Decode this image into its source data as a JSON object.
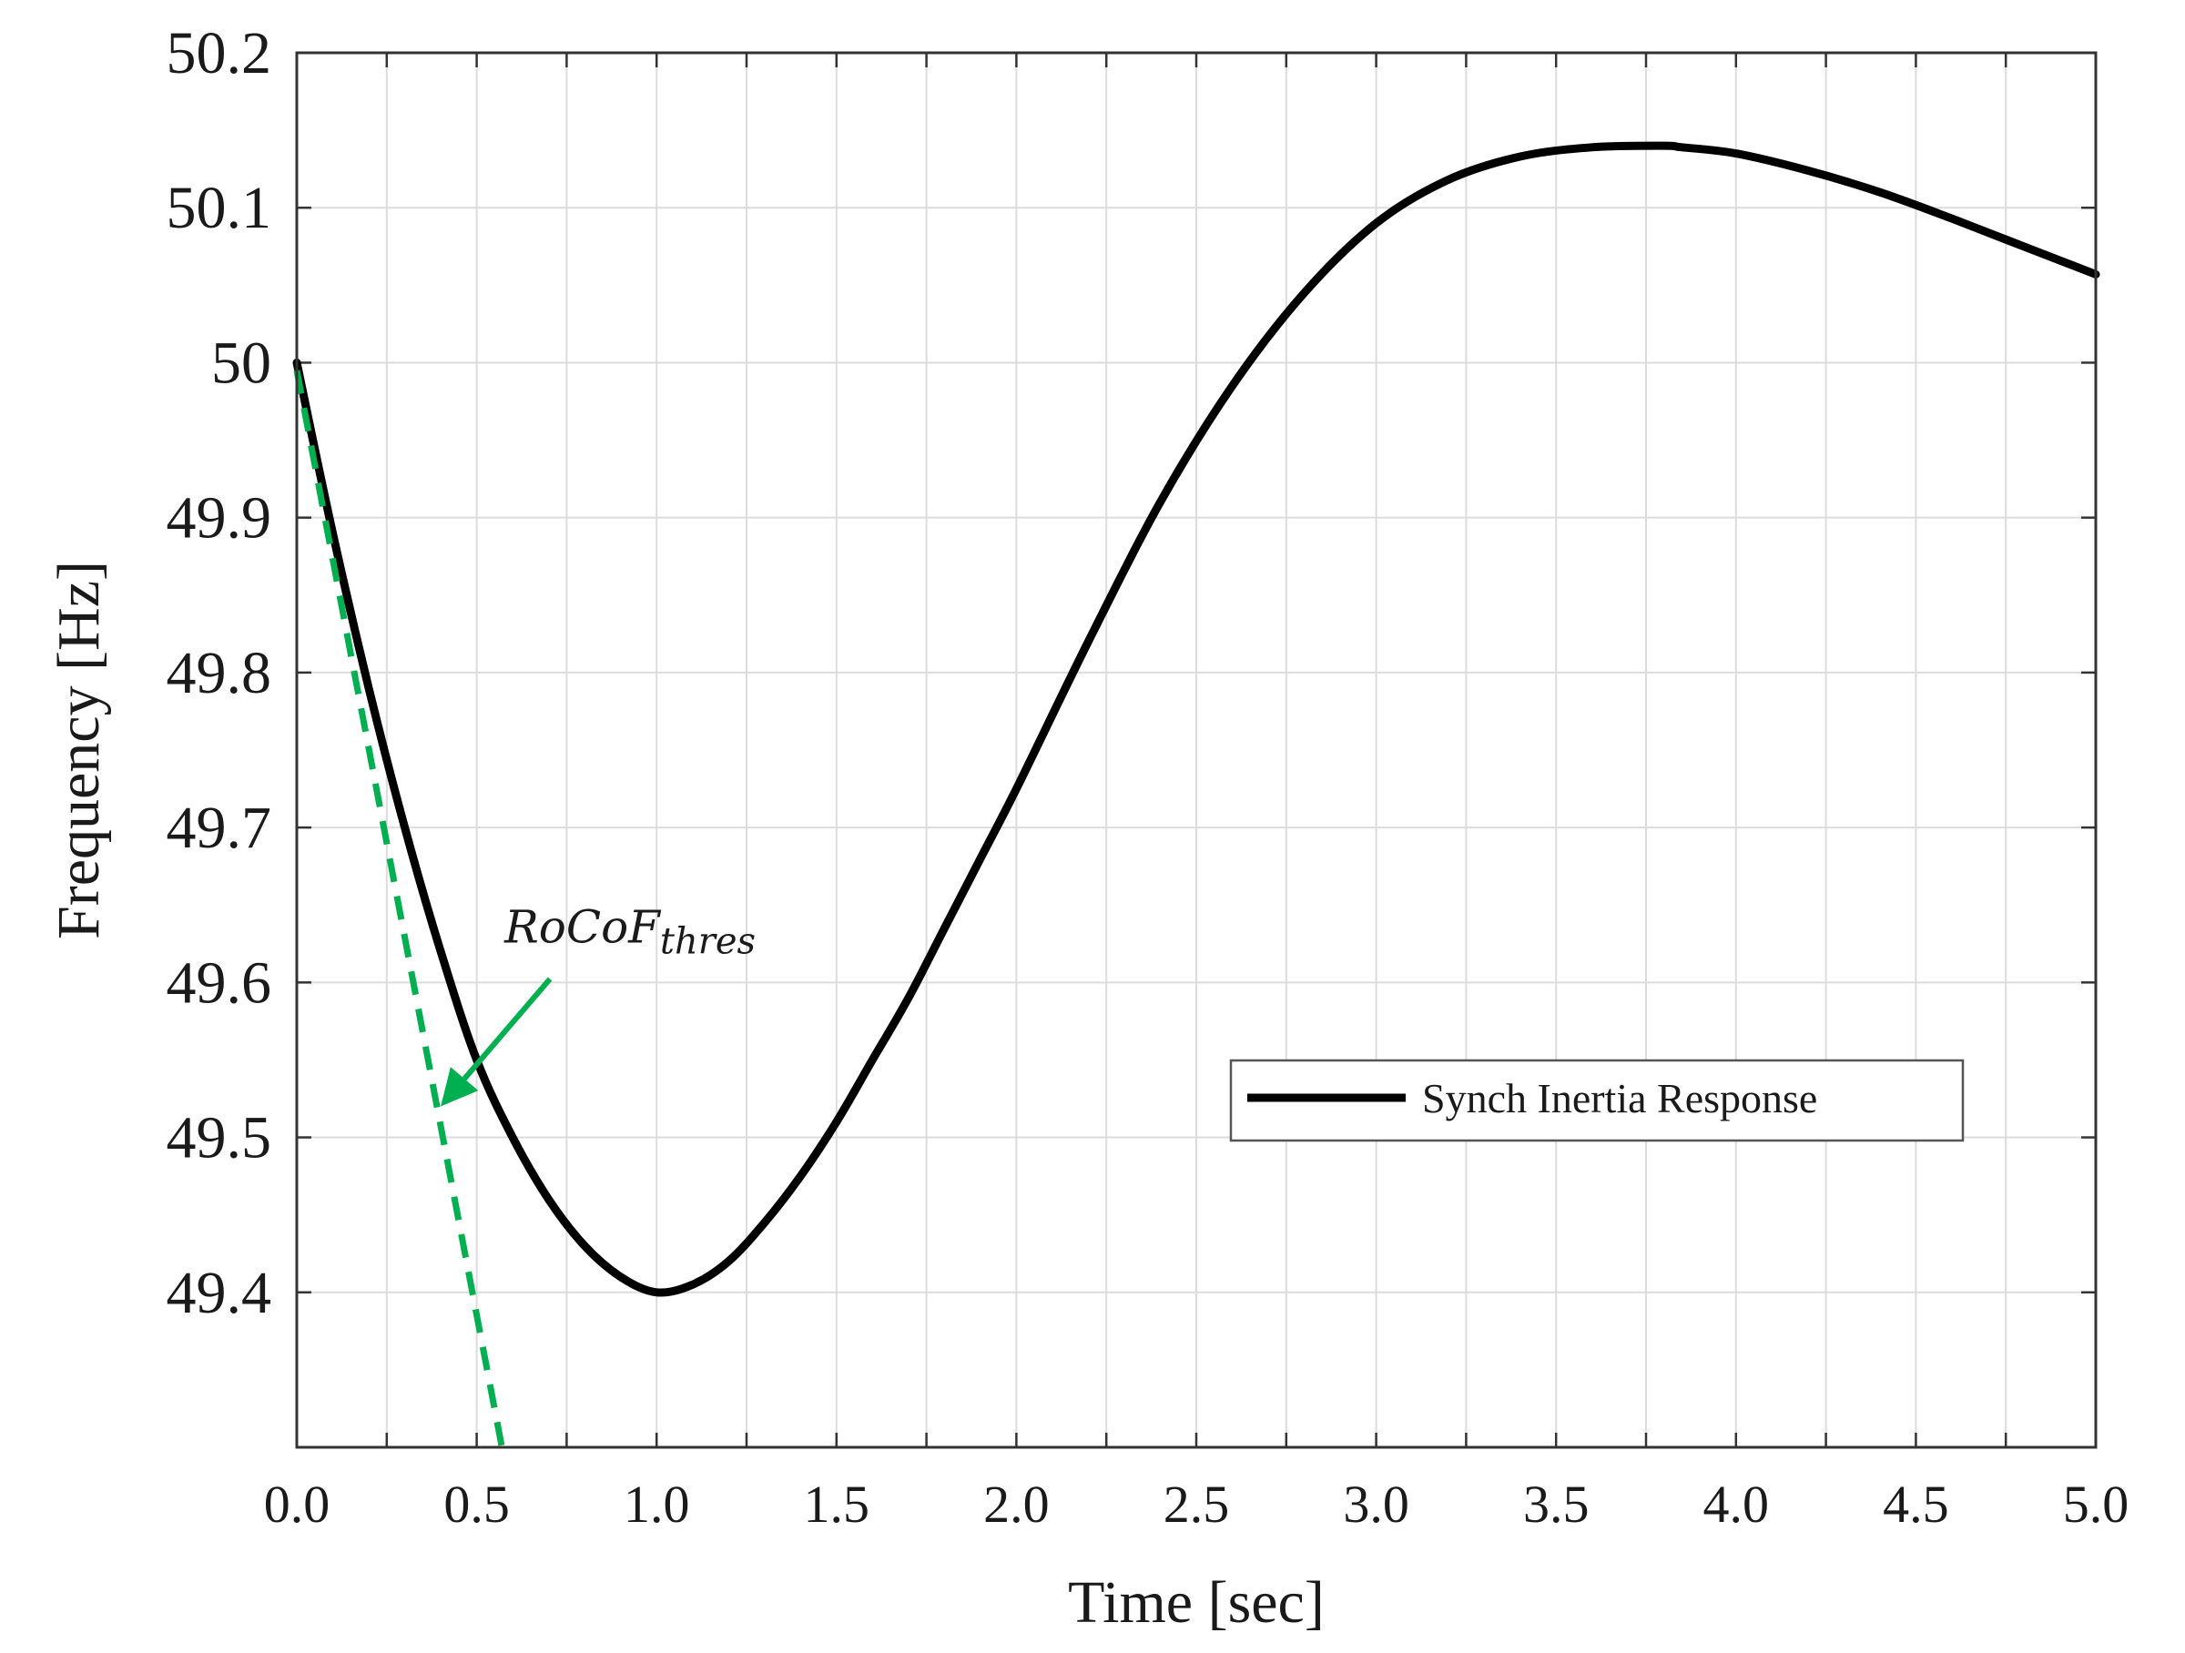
{
  "chart_data": {
    "type": "line",
    "xlabel": "Time [sec]",
    "ylabel": "Frequency [Hz]",
    "xlim": [
      0,
      5
    ],
    "ylim": [
      49.3,
      50.2
    ],
    "xticks": [
      "0.0",
      "0.5",
      "1.0",
      "1.5",
      "2.0",
      "2.5",
      "3.0",
      "3.5",
      "4.0",
      "4.5",
      "5.0"
    ],
    "yticks": [
      "49.4",
      "49.5",
      "49.6",
      "49.7",
      "49.8",
      "49.9",
      "50",
      "50.1",
      "50.2"
    ],
    "grid": true,
    "legend_position": "center-right",
    "series": [
      {
        "name": "Synch Inertia Response",
        "color": "#000000",
        "style": "solid",
        "x": [
          0,
          0.1,
          0.2,
          0.3,
          0.4,
          0.5,
          0.6,
          0.7,
          0.8,
          0.9,
          1.0,
          1.1,
          1.2,
          1.3,
          1.4,
          1.5,
          1.6,
          1.7,
          1.8,
          1.9,
          2.0,
          2.2,
          2.4,
          2.6,
          2.8,
          3.0,
          3.2,
          3.4,
          3.6,
          3.8,
          3.85,
          4.0,
          4.2,
          4.4,
          4.6,
          4.8,
          5.0
        ],
        "y": [
          50.0,
          49.89,
          49.79,
          49.7,
          49.62,
          49.55,
          49.5,
          49.46,
          49.43,
          49.41,
          49.4,
          49.405,
          49.42,
          49.445,
          49.475,
          49.51,
          49.55,
          49.59,
          49.635,
          49.68,
          49.725,
          49.82,
          49.91,
          49.985,
          50.045,
          50.09,
          50.118,
          50.133,
          50.139,
          50.14,
          50.139,
          50.135,
          50.124,
          50.11,
          50.093,
          50.075,
          50.057
        ]
      },
      {
        "color": "#00b050",
        "style": "dashed",
        "x": [
          0,
          0.57
        ],
        "y": [
          49.995,
          49.3
        ]
      }
    ],
    "annotation": {
      "text_main": "RoCoF",
      "text_sub": "thres",
      "color": "#00b050",
      "points_to_x": 0.4,
      "points_to_y": 49.52
    }
  }
}
